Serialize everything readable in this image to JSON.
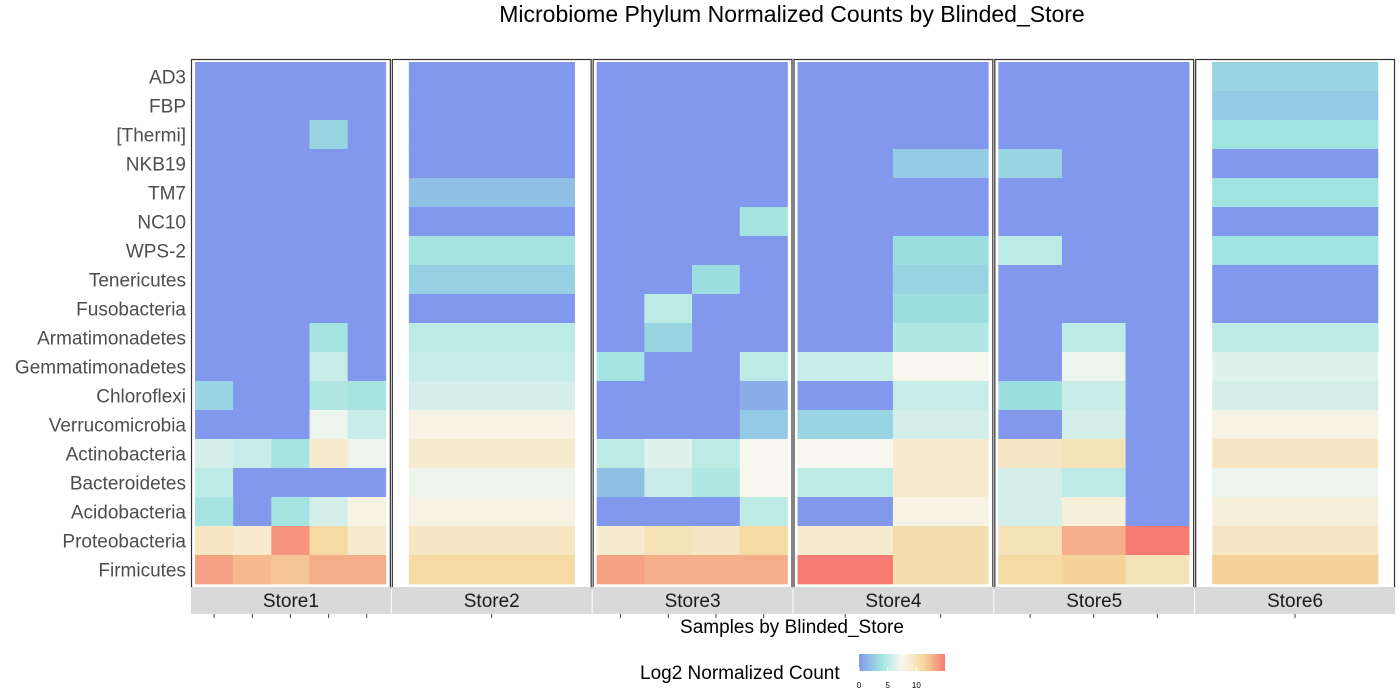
{
  "chart_data": {
    "type": "heatmap",
    "title": "Microbiome Phylum Normalized Counts by Blinded_Store",
    "xlabel": "Samples by Blinded_Store",
    "ylabel": "",
    "rows": [
      "AD3",
      "FBP",
      "[Thermi]",
      "NKB19",
      "TM7",
      "NC10",
      "WPS-2",
      "Tenericutes",
      "Fusobacteria",
      "Armatimonadetes",
      "Gemmatimonadetes",
      "Chloroflexi",
      "Verrucomicrobia",
      "Actinobacteria",
      "Bacteroidetes",
      "Acidobacteria",
      "Proteobacteria",
      "Firmicutes"
    ],
    "facets": [
      {
        "name": "Store1",
        "values": [
          [
            0,
            0,
            0,
            0,
            0
          ],
          [
            0,
            0,
            0,
            0,
            0
          ],
          [
            0,
            0,
            0,
            3,
            0
          ],
          [
            0,
            0,
            0,
            0,
            0
          ],
          [
            0,
            0,
            0,
            0,
            0
          ],
          [
            0,
            0,
            0,
            0,
            0
          ],
          [
            0,
            0,
            0,
            0,
            0
          ],
          [
            0,
            0,
            0,
            0,
            0
          ],
          [
            0,
            0,
            0,
            0,
            0
          ],
          [
            0,
            0,
            0,
            4,
            0
          ],
          [
            0,
            0,
            0,
            5.5,
            0
          ],
          [
            3,
            0,
            0,
            4.5,
            4
          ],
          [
            0,
            0,
            0,
            7,
            5.5
          ],
          [
            6,
            5.5,
            4,
            9,
            7
          ],
          [
            5,
            0,
            0,
            0,
            0
          ],
          [
            4,
            0,
            4,
            6,
            8
          ],
          [
            9.5,
            9,
            14,
            11,
            9
          ],
          [
            13.5,
            12.5,
            12,
            13,
            13
          ]
        ]
      },
      {
        "name": "Store2",
        "values": [
          [
            0
          ],
          [
            0
          ],
          [
            0
          ],
          [
            0
          ],
          [
            2
          ],
          [
            0
          ],
          [
            4
          ],
          [
            2.8
          ],
          [
            0
          ],
          [
            5
          ],
          [
            5.5
          ],
          [
            6
          ],
          [
            8
          ],
          [
            9
          ],
          [
            7
          ],
          [
            8
          ],
          [
            9.5
          ],
          [
            11
          ]
        ]
      },
      {
        "name": "Store3",
        "values": [
          [
            0,
            0,
            0,
            0
          ],
          [
            0,
            0,
            0,
            0
          ],
          [
            0,
            0,
            0,
            0
          ],
          [
            0,
            0,
            0,
            0
          ],
          [
            0,
            0,
            0,
            0
          ],
          [
            0,
            0,
            0,
            4
          ],
          [
            0,
            0,
            0,
            0
          ],
          [
            0,
            0,
            3.5,
            0
          ],
          [
            0,
            5,
            0,
            0
          ],
          [
            0,
            3,
            0,
            0
          ],
          [
            4,
            0,
            0,
            5
          ],
          [
            0,
            0,
            0,
            1
          ],
          [
            0,
            0,
            0,
            2.5
          ],
          [
            5,
            6.5,
            5,
            7.5
          ],
          [
            2,
            5.5,
            4.5,
            7.5
          ],
          [
            0,
            0,
            0,
            5
          ],
          [
            9,
            10,
            9.5,
            11
          ],
          [
            13.5,
            13,
            13,
            13
          ]
        ]
      },
      {
        "name": "Store4",
        "values": [
          [
            0,
            0
          ],
          [
            0,
            0
          ],
          [
            0,
            0
          ],
          [
            0,
            2.5
          ],
          [
            0,
            0
          ],
          [
            0,
            0
          ],
          [
            0,
            3.5
          ],
          [
            0,
            3
          ],
          [
            0,
            3.5
          ],
          [
            0,
            4.5
          ],
          [
            5.5,
            7.5
          ],
          [
            0,
            5.5
          ],
          [
            3,
            6
          ],
          [
            7.5,
            9
          ],
          [
            5,
            9
          ],
          [
            0,
            8
          ],
          [
            9,
            10.5
          ],
          [
            15,
            10.5
          ]
        ]
      },
      {
        "name": "Store5",
        "values": [
          [
            0,
            0,
            0
          ],
          [
            0,
            0,
            0
          ],
          [
            0,
            0,
            0
          ],
          [
            3,
            0,
            0
          ],
          [
            0,
            0,
            0
          ],
          [
            0,
            0,
            0
          ],
          [
            5,
            0,
            0
          ],
          [
            0,
            0,
            0
          ],
          [
            0,
            0,
            0
          ],
          [
            0,
            5,
            0
          ],
          [
            0,
            7,
            0
          ],
          [
            3.5,
            5.5,
            0
          ],
          [
            0,
            6,
            0
          ],
          [
            9.5,
            10,
            0
          ],
          [
            6,
            5,
            0
          ],
          [
            6,
            8.5,
            0
          ],
          [
            10,
            13,
            15
          ],
          [
            11,
            11.5,
            10
          ]
        ]
      },
      {
        "name": "Store6",
        "values": [
          [
            3
          ],
          [
            2.5
          ],
          [
            3.8
          ],
          [
            0
          ],
          [
            3.8
          ],
          [
            0
          ],
          [
            3.8
          ],
          [
            0
          ],
          [
            0
          ],
          [
            5
          ],
          [
            6.5
          ],
          [
            6
          ],
          [
            8
          ],
          [
            9.5
          ],
          [
            7
          ],
          [
            8.5
          ],
          [
            9.5
          ],
          [
            11.5
          ]
        ]
      }
    ],
    "legend": {
      "title": "Log2 Normalized Count",
      "ticks": [
        "0",
        "5",
        "10"
      ],
      "min": 0,
      "max": 15,
      "position": "bottom"
    },
    "colors": [
      "#8298ec",
      "#9fe3e0",
      "#f7f7ef",
      "#f5d89e",
      "#f77b72"
    ],
    "grid": false
  }
}
